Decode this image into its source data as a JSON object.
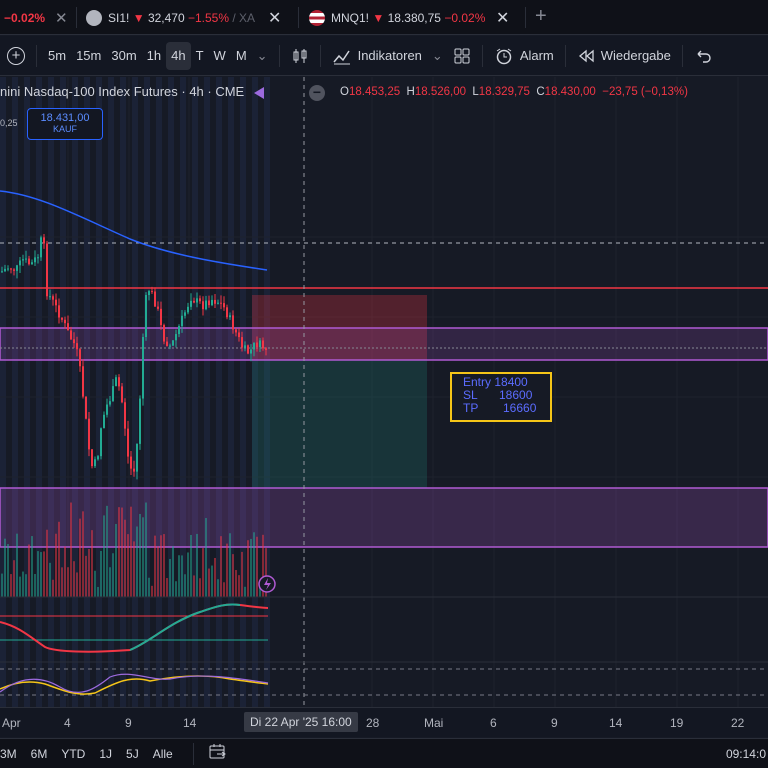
{
  "tabs": [
    {
      "change": "−0.02%"
    },
    {
      "symbol": "SI1!",
      "arrow": "▼",
      "price": "32,470",
      "change": "−1.55%",
      "suffix": "/ XA"
    },
    {
      "symbol": "MNQ1!",
      "arrow": "▼",
      "price": "18.380,75",
      "change": "−0.02%"
    }
  ],
  "new_tab": "+",
  "toolbar": {
    "add_icon": "+",
    "intervals": [
      "5m",
      "15m",
      "30m",
      "1h",
      "4h",
      "T",
      "W",
      "M"
    ],
    "active_interval": "4h",
    "indicators_label": "Indikatoren",
    "alarm_label": "Alarm",
    "replay_label": "Wiedergabe"
  },
  "legend": {
    "title": "nini Nasdaq-100 Index Futures · 4h · CME",
    "open_label": "O",
    "open": "18.453,25",
    "high_label": "H",
    "high": "18.526,00",
    "low_label": "L",
    "low": "18.329,75",
    "close_label": "C",
    "close": "18.430,00",
    "change": "−23,75 (−0,13%)"
  },
  "trade": {
    "price": "18.431,00",
    "label": "KAUF",
    "side_value": "0,25"
  },
  "note": {
    "entry_label": "Entry",
    "entry": "18400",
    "sl_label": "SL",
    "sl": "18600",
    "tp_label": "TP",
    "tp": "16660"
  },
  "xaxis": {
    "ticks": [
      "Apr",
      "4",
      "9",
      "14",
      "28",
      "Mai",
      "6",
      "9",
      "14",
      "19",
      "22"
    ],
    "crosshair": "Di 22 Apr '25   16:00"
  },
  "bottom": {
    "ranges": [
      "3M",
      "6M",
      "YTD",
      "1J",
      "5J",
      "Alle"
    ],
    "time": "09:14:0"
  },
  "colors": {
    "up": "#22ab94",
    "down": "#f23645",
    "purple": "#b05ad3",
    "gold": "#f5c518"
  }
}
